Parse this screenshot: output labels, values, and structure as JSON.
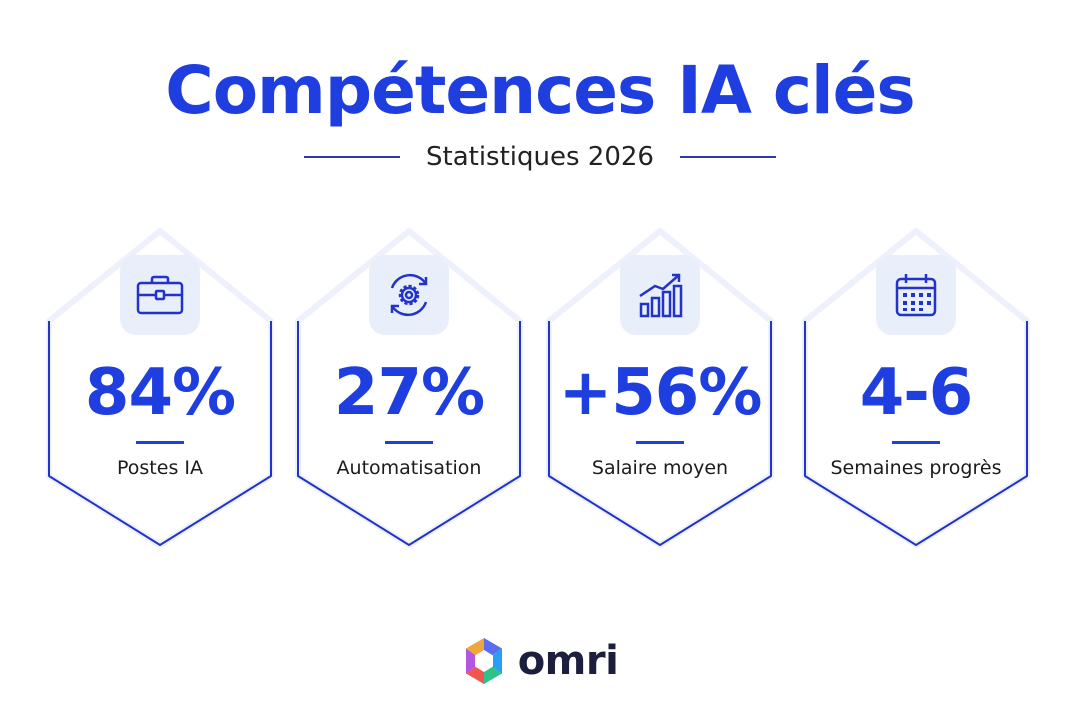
{
  "header": {
    "title": "Compétences IA clés",
    "subtitle": "Statistiques 2026"
  },
  "accent_color": "#1f3ee0",
  "cards": [
    {
      "icon": "briefcase-icon",
      "value": "84%",
      "label": "Postes IA"
    },
    {
      "icon": "gear-cycle-icon",
      "value": "27%",
      "label": "Automatisation"
    },
    {
      "icon": "growth-chart-icon",
      "value": "+56%",
      "label": "Salaire moyen"
    },
    {
      "icon": "calendar-icon",
      "value": "4-6",
      "label": "Semaines progrès"
    }
  ],
  "brand": {
    "name": "omri"
  }
}
